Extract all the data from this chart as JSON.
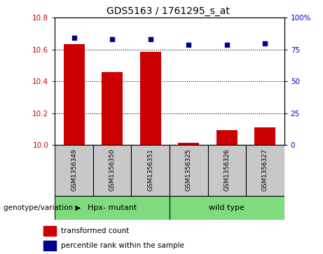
{
  "title": "GDS5163 / 1761295_s_at",
  "samples": [
    "GSM1356349",
    "GSM1356350",
    "GSM1356351",
    "GSM1356325",
    "GSM1356326",
    "GSM1356327"
  ],
  "transformed_count": [
    10.635,
    10.46,
    10.585,
    10.015,
    10.09,
    10.11
  ],
  "percentile_rank": [
    84,
    83,
    83,
    79,
    79,
    80
  ],
  "groups": [
    {
      "name": "Hpx- mutant",
      "indices": [
        0,
        1,
        2
      ],
      "color": "#7EDB7E"
    },
    {
      "name": "wild type",
      "indices": [
        3,
        4,
        5
      ],
      "color": "#7EDB7E"
    }
  ],
  "ylim_left": [
    10.0,
    10.8
  ],
  "ylim_right": [
    0,
    100
  ],
  "yticks_left": [
    10.0,
    10.2,
    10.4,
    10.6,
    10.8
  ],
  "yticks_right": [
    0,
    25,
    50,
    75,
    100
  ],
  "ytick_right_labels": [
    "0",
    "25",
    "50",
    "75",
    "100%"
  ],
  "bar_color": "#CC0000",
  "dot_color": "#00008B",
  "label_color_left": "#CC0000",
  "label_color_right": "#0000CC",
  "sample_box_color": "#C8C8C8",
  "genotype_label": "genotype/variation",
  "legend_bar": "transformed count",
  "legend_dot": "percentile rank within the sample"
}
